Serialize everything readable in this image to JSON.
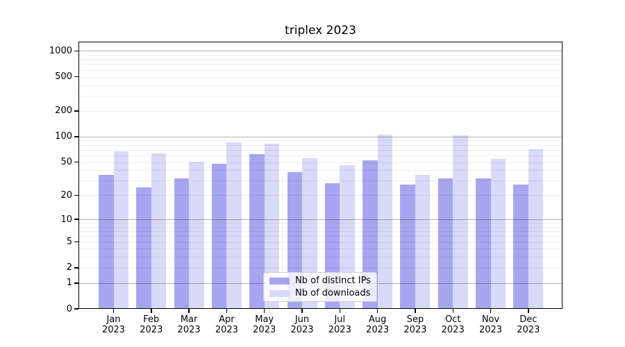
{
  "title": "triplex 2023",
  "legend": {
    "entries": [
      {
        "label": "Nb of distinct IPs",
        "color": "#a6a6f0"
      },
      {
        "label": "Nb of downloads",
        "color": "#d9d9f8"
      }
    ]
  },
  "colors": {
    "distinct_ips_bar": "#a6a6f0",
    "downloads_bar": "#d9d9f8",
    "major_grid": "#b3b3b3",
    "minor_grid": "#f0f0f0",
    "axis_spine": "#000000",
    "legend_border": "#cccccc"
  },
  "chart_data": {
    "type": "bar",
    "title": "triplex 2023",
    "xlabel": "",
    "ylabel": "",
    "categories": [
      "Jan",
      "Feb",
      "Mar",
      "Apr",
      "May",
      "Jun",
      "Jul",
      "Aug",
      "Sep",
      "Oct",
      "Nov",
      "Dec"
    ],
    "x_tick_second_line": "2023",
    "series": [
      {
        "name": "Nb of distinct IPs",
        "color": "#a6a6f0",
        "values": [
          35,
          25,
          32,
          48,
          62,
          38,
          28,
          52,
          27,
          32,
          32,
          27
        ]
      },
      {
        "name": "Nb of downloads",
        "color": "#d9d9f8",
        "values": [
          67,
          63,
          51,
          85,
          82,
          56,
          46,
          106,
          35,
          103,
          55,
          71
        ]
      }
    ],
    "yscale": "log10(value+1)",
    "ylim": [
      0,
      1283
    ],
    "y_tick_values": [
      0,
      1,
      2,
      5,
      10,
      20,
      50,
      100,
      200,
      500,
      1000
    ],
    "y_major_gridlines": [
      1,
      10,
      100,
      1000
    ],
    "y_minor_gridlines": [
      2,
      3,
      4,
      5,
      6,
      7,
      8,
      9,
      20,
      30,
      40,
      50,
      60,
      70,
      80,
      90,
      200,
      300,
      400,
      500,
      600,
      700,
      800,
      900
    ],
    "grid": true,
    "grid_above_bars": true,
    "legend_position": "lower center inside axes"
  }
}
